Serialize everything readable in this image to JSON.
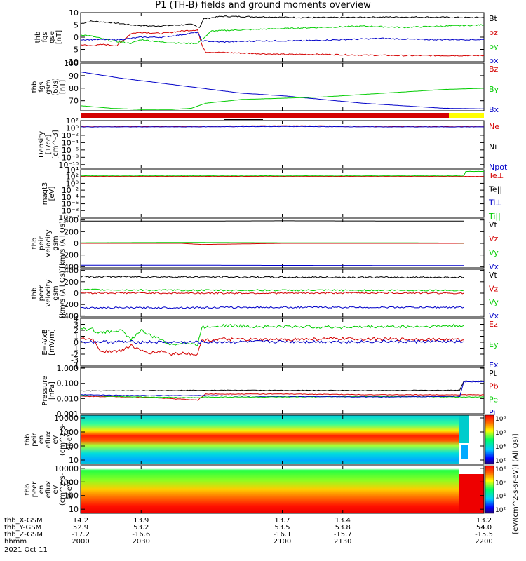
{
  "title": "P1 (TH-B) fields and ground moments overview",
  "colors": {
    "black": "#000000",
    "red": "#d40000",
    "green": "#00cc00",
    "blue": "#0000c8",
    "yellow": "#ffff00",
    "cyan": "#00e6e6"
  },
  "chart_data": [
    {
      "type": "line",
      "ylabel": [
        "thb",
        "fgs",
        "gse",
        "[nT]"
      ],
      "ylim": [
        -10,
        10
      ],
      "yticks": [
        "10",
        "5",
        "0",
        "-5",
        "-10"
      ],
      "ytick_values": [
        10,
        5,
        0,
        -5,
        -10
      ],
      "legend": [
        {
          "name": "Bt",
          "color": "#000000"
        },
        {
          "name": "bz",
          "color": "#d40000"
        },
        {
          "name": "by",
          "color": "#00cc00"
        },
        {
          "name": "bx",
          "color": "#0000c8"
        }
      ],
      "series": [
        {
          "name": "Bt",
          "color": "#000000",
          "x": [
            2000,
            2005,
            2015,
            2025,
            2035,
            2045,
            2055,
            2059,
            2061,
            2070,
            2090,
            2110,
            2130,
            2150,
            2170,
            2190,
            2200
          ],
          "y": [
            5.5,
            6.5,
            6.0,
            5.0,
            4.5,
            4.8,
            5.2,
            4.0,
            7.5,
            8.5,
            8.3,
            8.0,
            8.0,
            8.2,
            8.2,
            8.0,
            8.0
          ]
        },
        {
          "name": "bz",
          "color": "#d40000",
          "x": [
            2000,
            2004,
            2012,
            2018,
            2025,
            2030,
            2040,
            2050,
            2058,
            2060,
            2062,
            2080,
            2100,
            2120,
            2140,
            2160,
            2180,
            2200
          ],
          "y": [
            -3.0,
            -3.5,
            -3.0,
            -3.5,
            1.5,
            2.0,
            1.5,
            2.5,
            3.0,
            -3.0,
            -6.0,
            -6.5,
            -7.0,
            -7.0,
            -7.3,
            -7.5,
            -7.5,
            -7.5
          ]
        },
        {
          "name": "by",
          "color": "#00cc00",
          "x": [
            2000,
            2005,
            2015,
            2025,
            2030,
            2040,
            2050,
            2058,
            2060,
            2065,
            2080,
            2100,
            2120,
            2140,
            2160,
            2180,
            2200
          ],
          "y": [
            1.0,
            0.5,
            -1.5,
            -2.5,
            -1.0,
            -2.0,
            -2.5,
            -2.5,
            -1.0,
            2.5,
            3.0,
            3.5,
            4.0,
            4.5,
            4.0,
            4.5,
            5.0
          ]
        },
        {
          "name": "bx",
          "color": "#0000c8",
          "x": [
            2000,
            2010,
            2020,
            2030,
            2040,
            2050,
            2058,
            2060,
            2070,
            2090,
            2110,
            2130,
            2150,
            2170,
            2190,
            2200
          ],
          "y": [
            -1.0,
            -1.0,
            -1.0,
            0.0,
            0.0,
            1.0,
            2.0,
            -1.5,
            -2.0,
            -1.5,
            -1.5,
            -1.0,
            -0.5,
            -1.0,
            -1.0,
            -1.0
          ]
        }
      ]
    },
    {
      "type": "line",
      "ylabel": [
        "thb",
        "fgs",
        "gsm",
        "(60s)",
        "[nT]"
      ],
      "ylim": [
        62,
        100
      ],
      "yticks": [
        "100",
        "90",
        "80",
        "70"
      ],
      "ytick_values": [
        100,
        90,
        80,
        70
      ],
      "legend": [
        {
          "name": "Bz",
          "color": "#d40000"
        },
        {
          "name": "By",
          "color": "#00cc00"
        },
        {
          "name": "Bx",
          "color": "#0000c8"
        }
      ],
      "series": [
        {
          "name": "Bx",
          "color": "#0000c8",
          "x": [
            2000,
            2020,
            2040,
            2060,
            2080,
            2100,
            2120,
            2140,
            2160,
            2180,
            2200
          ],
          "y": [
            93.0,
            88.0,
            84.0,
            80.0,
            76.0,
            74.0,
            71.0,
            68.0,
            66.0,
            64.0,
            63.5
          ]
        },
        {
          "name": "By",
          "color": "#00cc00",
          "x": [
            2000,
            2015,
            2030,
            2045,
            2055,
            2062,
            2080,
            2100,
            2120,
            2140,
            2160,
            2180,
            2200
          ],
          "y": [
            66.0,
            64.0,
            63.0,
            63.0,
            64.0,
            68.0,
            71.0,
            72.0,
            73.0,
            75.0,
            77.0,
            79.0,
            80.0
          ]
        }
      ]
    },
    {
      "type": "line",
      "ylabel": [
        "Density",
        "[1/cc]",
        "[cm^-3]"
      ],
      "ylog": true,
      "ylim": [
        -11,
        2
      ],
      "yticks": [
        "10²",
        "10⁰",
        "10⁻²",
        "10⁻⁴",
        "10⁻⁶",
        "10⁻⁸",
        "10⁻¹⁰"
      ],
      "ytick_values": [
        2,
        0,
        -2,
        -4,
        -6,
        -8,
        -10
      ],
      "legend": [
        {
          "name": "Ne",
          "color": "#d40000"
        },
        {
          "name": "Ni",
          "color": "#000000"
        },
        {
          "name": "Npot",
          "color": "#0000c8"
        }
      ],
      "series": [
        {
          "name": "Ne",
          "color": "#d40000",
          "x": [
            2000,
            2050,
            2100,
            2150,
            2200
          ],
          "y": [
            0.5,
            0.5,
            0.6,
            0.5,
            0.5
          ]
        },
        {
          "name": "Npot",
          "color": "#0000c8",
          "x": [
            2000,
            2050,
            2100,
            2150,
            2200
          ],
          "y": [
            0.3,
            0.3,
            0.4,
            0.3,
            0.3
          ]
        }
      ]
    },
    {
      "type": "line",
      "ylabel": [
        "magt3",
        "[eV]"
      ],
      "ylog": true,
      "ylim": [
        -10,
        4
      ],
      "yticks": [
        "10⁴",
        "10²",
        "10⁰",
        "10⁻²",
        "10⁻⁴",
        "10⁻⁶",
        "10⁻⁸",
        "10⁻¹⁰"
      ],
      "ytick_values": [
        4,
        2,
        0,
        -2,
        -4,
        -6,
        -8,
        -10
      ],
      "legend": [
        {
          "name": "Te⊥",
          "color": "#d40000"
        },
        {
          "name": "Te||",
          "color": "#000000"
        },
        {
          "name": "Ti⊥",
          "color": "#0000c8"
        },
        {
          "name": "Ti||",
          "color": "#00cc00"
        }
      ],
      "series": [
        {
          "name": "Ti||",
          "color": "#00cc00",
          "x": [
            2000,
            2190,
            2191,
            2200
          ],
          "y": [
            2.2,
            2.2,
            3.5,
            3.5
          ]
        },
        {
          "name": "Te⊥",
          "color": "#d40000",
          "x": [
            2000,
            2190,
            2200
          ],
          "y": [
            2.0,
            2.0,
            2.0
          ]
        }
      ]
    },
    {
      "type": "line",
      "ylabel": [
        "thb",
        "peir",
        "velocity",
        "gsm",
        "[km/s (All Qs)]"
      ],
      "ylim": [
        -420,
        420
      ],
      "yticks": [
        "400",
        "200",
        "0",
        "-200",
        "-400"
      ],
      "ytick_values": [
        400,
        200,
        0,
        -200,
        -400
      ],
      "legend": [
        {
          "name": "Vt",
          "color": "#000000"
        },
        {
          "name": "Vz",
          "color": "#d40000"
        },
        {
          "name": "Vy",
          "color": "#00cc00"
        },
        {
          "name": "Vx",
          "color": "#0000c8"
        }
      ],
      "series": [
        {
          "name": "Vt",
          "color": "#000000",
          "x": [
            2000,
            2050,
            2100,
            2150,
            2190
          ],
          "y": [
            380,
            380,
            385,
            382,
            382
          ]
        },
        {
          "name": "Vz",
          "color": "#d40000",
          "x": [
            2000,
            2050,
            2060,
            2100,
            2150,
            2190
          ],
          "y": [
            0,
            0,
            -20,
            0,
            0,
            0
          ]
        },
        {
          "name": "Vy",
          "color": "#00cc00",
          "x": [
            2000,
            2050,
            2100,
            2150,
            2190
          ],
          "y": [
            10,
            15,
            10,
            10,
            5
          ]
        },
        {
          "name": "Vx",
          "color": "#0000c8",
          "x": [
            2000,
            2050,
            2100,
            2150,
            2190
          ],
          "y": [
            -375,
            -375,
            -378,
            -380,
            -380
          ]
        }
      ]
    },
    {
      "type": "line",
      "ylabel": [
        "thb",
        "peer",
        "velocity",
        "gsm",
        "[km/s (All Qs)]"
      ],
      "ylim": [
        -420,
        420
      ],
      "yticks": [
        "400",
        "200",
        "0",
        "-200",
        "-400"
      ],
      "ytick_values": [
        400,
        200,
        0,
        -200,
        -400
      ],
      "legend": [
        {
          "name": "Vt",
          "color": "#000000"
        },
        {
          "name": "Vz",
          "color": "#d40000"
        },
        {
          "name": "Vy",
          "color": "#00cc00"
        },
        {
          "name": "Vx",
          "color": "#0000c8"
        }
      ],
      "series": [
        {
          "name": "Vt",
          "color": "#000000",
          "x": [
            2000,
            2050,
            2100,
            2150,
            2190
          ],
          "y": [
            290,
            285,
            280,
            278,
            280
          ]
        },
        {
          "name": "Vz",
          "color": "#d40000",
          "x": [
            2000,
            2050,
            2100,
            2150,
            2190
          ],
          "y": [
            5,
            0,
            0,
            5,
            0
          ]
        },
        {
          "name": "Vy",
          "color": "#00cc00",
          "x": [
            2000,
            2050,
            2100,
            2150,
            2190
          ],
          "y": [
            60,
            50,
            50,
            50,
            50
          ]
        },
        {
          "name": "Vx",
          "color": "#0000c8",
          "x": [
            2000,
            2050,
            2100,
            2150,
            2190
          ],
          "y": [
            -260,
            -255,
            -250,
            -250,
            -250
          ]
        }
      ]
    },
    {
      "type": "line",
      "ylabel": [
        "E=-VxB",
        "[mV/m]"
      ],
      "ylim": [
        -4,
        4
      ],
      "yticks": [
        "4",
        "3",
        "2",
        "1",
        "0",
        "-1",
        "-2",
        "-3",
        "-4"
      ],
      "ytick_values": [
        4,
        3,
        2,
        1,
        0,
        -1,
        -2,
        -3,
        -4
      ],
      "legend": [
        {
          "name": "Ez",
          "color": "#d40000"
        },
        {
          "name": "Ey",
          "color": "#00cc00"
        },
        {
          "name": "Ex",
          "color": "#0000c8"
        }
      ],
      "series": [
        {
          "name": "Ey",
          "color": "#00cc00",
          "x": [
            2000,
            2006,
            2008,
            2020,
            2025,
            2030,
            2035,
            2040,
            2045,
            2050,
            2058,
            2060,
            2070,
            2090,
            2110,
            2130,
            2150,
            2170,
            2190
          ],
          "y": [
            2.2,
            2.2,
            1.5,
            2.0,
            0.5,
            2.0,
            1.0,
            0.5,
            -0.5,
            0.0,
            -0.5,
            2.5,
            2.8,
            2.6,
            2.6,
            2.5,
            2.6,
            2.6,
            2.8
          ]
        },
        {
          "name": "Ez",
          "color": "#d40000",
          "x": [
            2000,
            2006,
            2010,
            2020,
            2025,
            2030,
            2035,
            2040,
            2045,
            2050,
            2058,
            2060,
            2070,
            2090,
            2110,
            2130,
            2150,
            2170,
            2190
          ],
          "y": [
            0.5,
            0.5,
            -1.5,
            -1.5,
            -0.5,
            -1.5,
            -1.8,
            -1.5,
            -2.0,
            -1.8,
            -2.0,
            0.3,
            0.5,
            0.4,
            0.5,
            0.6,
            0.5,
            0.5,
            0.4
          ]
        },
        {
          "name": "Ex",
          "color": "#0000c8",
          "x": [
            2000,
            2050,
            2100,
            2150,
            2190
          ],
          "y": [
            0.1,
            0.0,
            0.1,
            0.1,
            0.1
          ]
        }
      ]
    },
    {
      "type": "line",
      "ylabel": [
        "Pressure",
        "[nPa]"
      ],
      "ylog": true,
      "ylim": [
        -3,
        0.05
      ],
      "yticks": [
        "1.000",
        "0.100",
        "0.010",
        "0.001"
      ],
      "ytick_values": [
        0,
        -1,
        -2,
        -3
      ],
      "legend": [
        {
          "name": "Pt",
          "color": "#000000"
        },
        {
          "name": "Pb",
          "color": "#d40000"
        },
        {
          "name": "Pe",
          "color": "#00cc00"
        },
        {
          "name": "Pi",
          "color": "#0000c8"
        }
      ],
      "series": [
        {
          "name": "Pt",
          "color": "#000000",
          "x": [
            2000,
            2030,
            2060,
            2100,
            2150,
            2188,
            2190,
            2200
          ],
          "y": [
            -1.5,
            -1.48,
            -1.45,
            -1.46,
            -1.47,
            -1.45,
            -0.85,
            -0.85
          ]
        },
        {
          "name": "Pb",
          "color": "#d40000",
          "x": [
            2000,
            2030,
            2058,
            2062,
            2100,
            2150,
            2200
          ],
          "y": [
            -1.85,
            -1.9,
            -2.1,
            -1.7,
            -1.7,
            -1.75,
            -1.75
          ]
        },
        {
          "name": "Pe",
          "color": "#00cc00",
          "x": [
            2000,
            2030,
            2058,
            2062,
            2100,
            2150,
            2188,
            2200
          ],
          "y": [
            -1.8,
            -1.9,
            -1.95,
            -1.9,
            -1.9,
            -1.85,
            -1.9,
            -1.9
          ]
        },
        {
          "name": "Pi",
          "color": "#0000c8",
          "x": [
            2000,
            2030,
            2060,
            2100,
            2150,
            2188,
            2190,
            2200
          ],
          "y": [
            -1.75,
            -1.8,
            -1.8,
            -1.85,
            -1.9,
            -1.85,
            -0.9,
            -0.9
          ]
        }
      ]
    },
    {
      "type": "heatmap",
      "ylabel": [
        "thb",
        "peir",
        "en",
        "eflux",
        "eV",
        "(cm^2-s-",
        "sr-eV)"
      ],
      "ylog": true,
      "ylim": [
        0.7,
        4.2
      ],
      "yticks": [
        "10000",
        "1000",
        "100",
        "10"
      ],
      "ytick_values": [
        4,
        3,
        2,
        1
      ]
    },
    {
      "type": "heatmap",
      "ylabel": [
        "thb",
        "peer",
        "en",
        "eflux",
        "eV",
        "(cm^2-s-",
        "sr-eV)"
      ],
      "ylog": true,
      "ylim": [
        0.7,
        4.2
      ],
      "yticks": [
        "10000",
        "1000",
        "100",
        "10"
      ],
      "ytick_values": [
        4,
        3,
        2,
        1
      ]
    }
  ],
  "xaxis": {
    "xlim": [
      2000,
      2200
    ],
    "tick_x": [
      2000,
      2030,
      2100,
      2130,
      2200
    ],
    "rows": [
      {
        "label": "thb_X-GSM",
        "values": [
          "14.2",
          "13.9",
          "13.7",
          "13.4",
          "13.2"
        ]
      },
      {
        "label": "thb_Y-GSM",
        "values": [
          "52.9",
          "53.2",
          "53.5",
          "53.8",
          "54.0"
        ]
      },
      {
        "label": "thb_Z-GSM",
        "values": [
          "-17.2",
          "-16.6",
          "-16.1",
          "-15.7",
          "-15.5"
        ]
      },
      {
        "label": "hhmm",
        "values": [
          "2000",
          "2030",
          "2100",
          "2130",
          "2200"
        ]
      }
    ],
    "date": "2021 Oct 11"
  },
  "colorbar": {
    "ticks": [
      "10⁸",
      "10⁶",
      "10⁴",
      "10²"
    ],
    "tick_values": [
      8,
      6,
      4,
      2
    ],
    "label": "[eV/(cm^2-s-sr-eV)] (All Qs)]"
  }
}
